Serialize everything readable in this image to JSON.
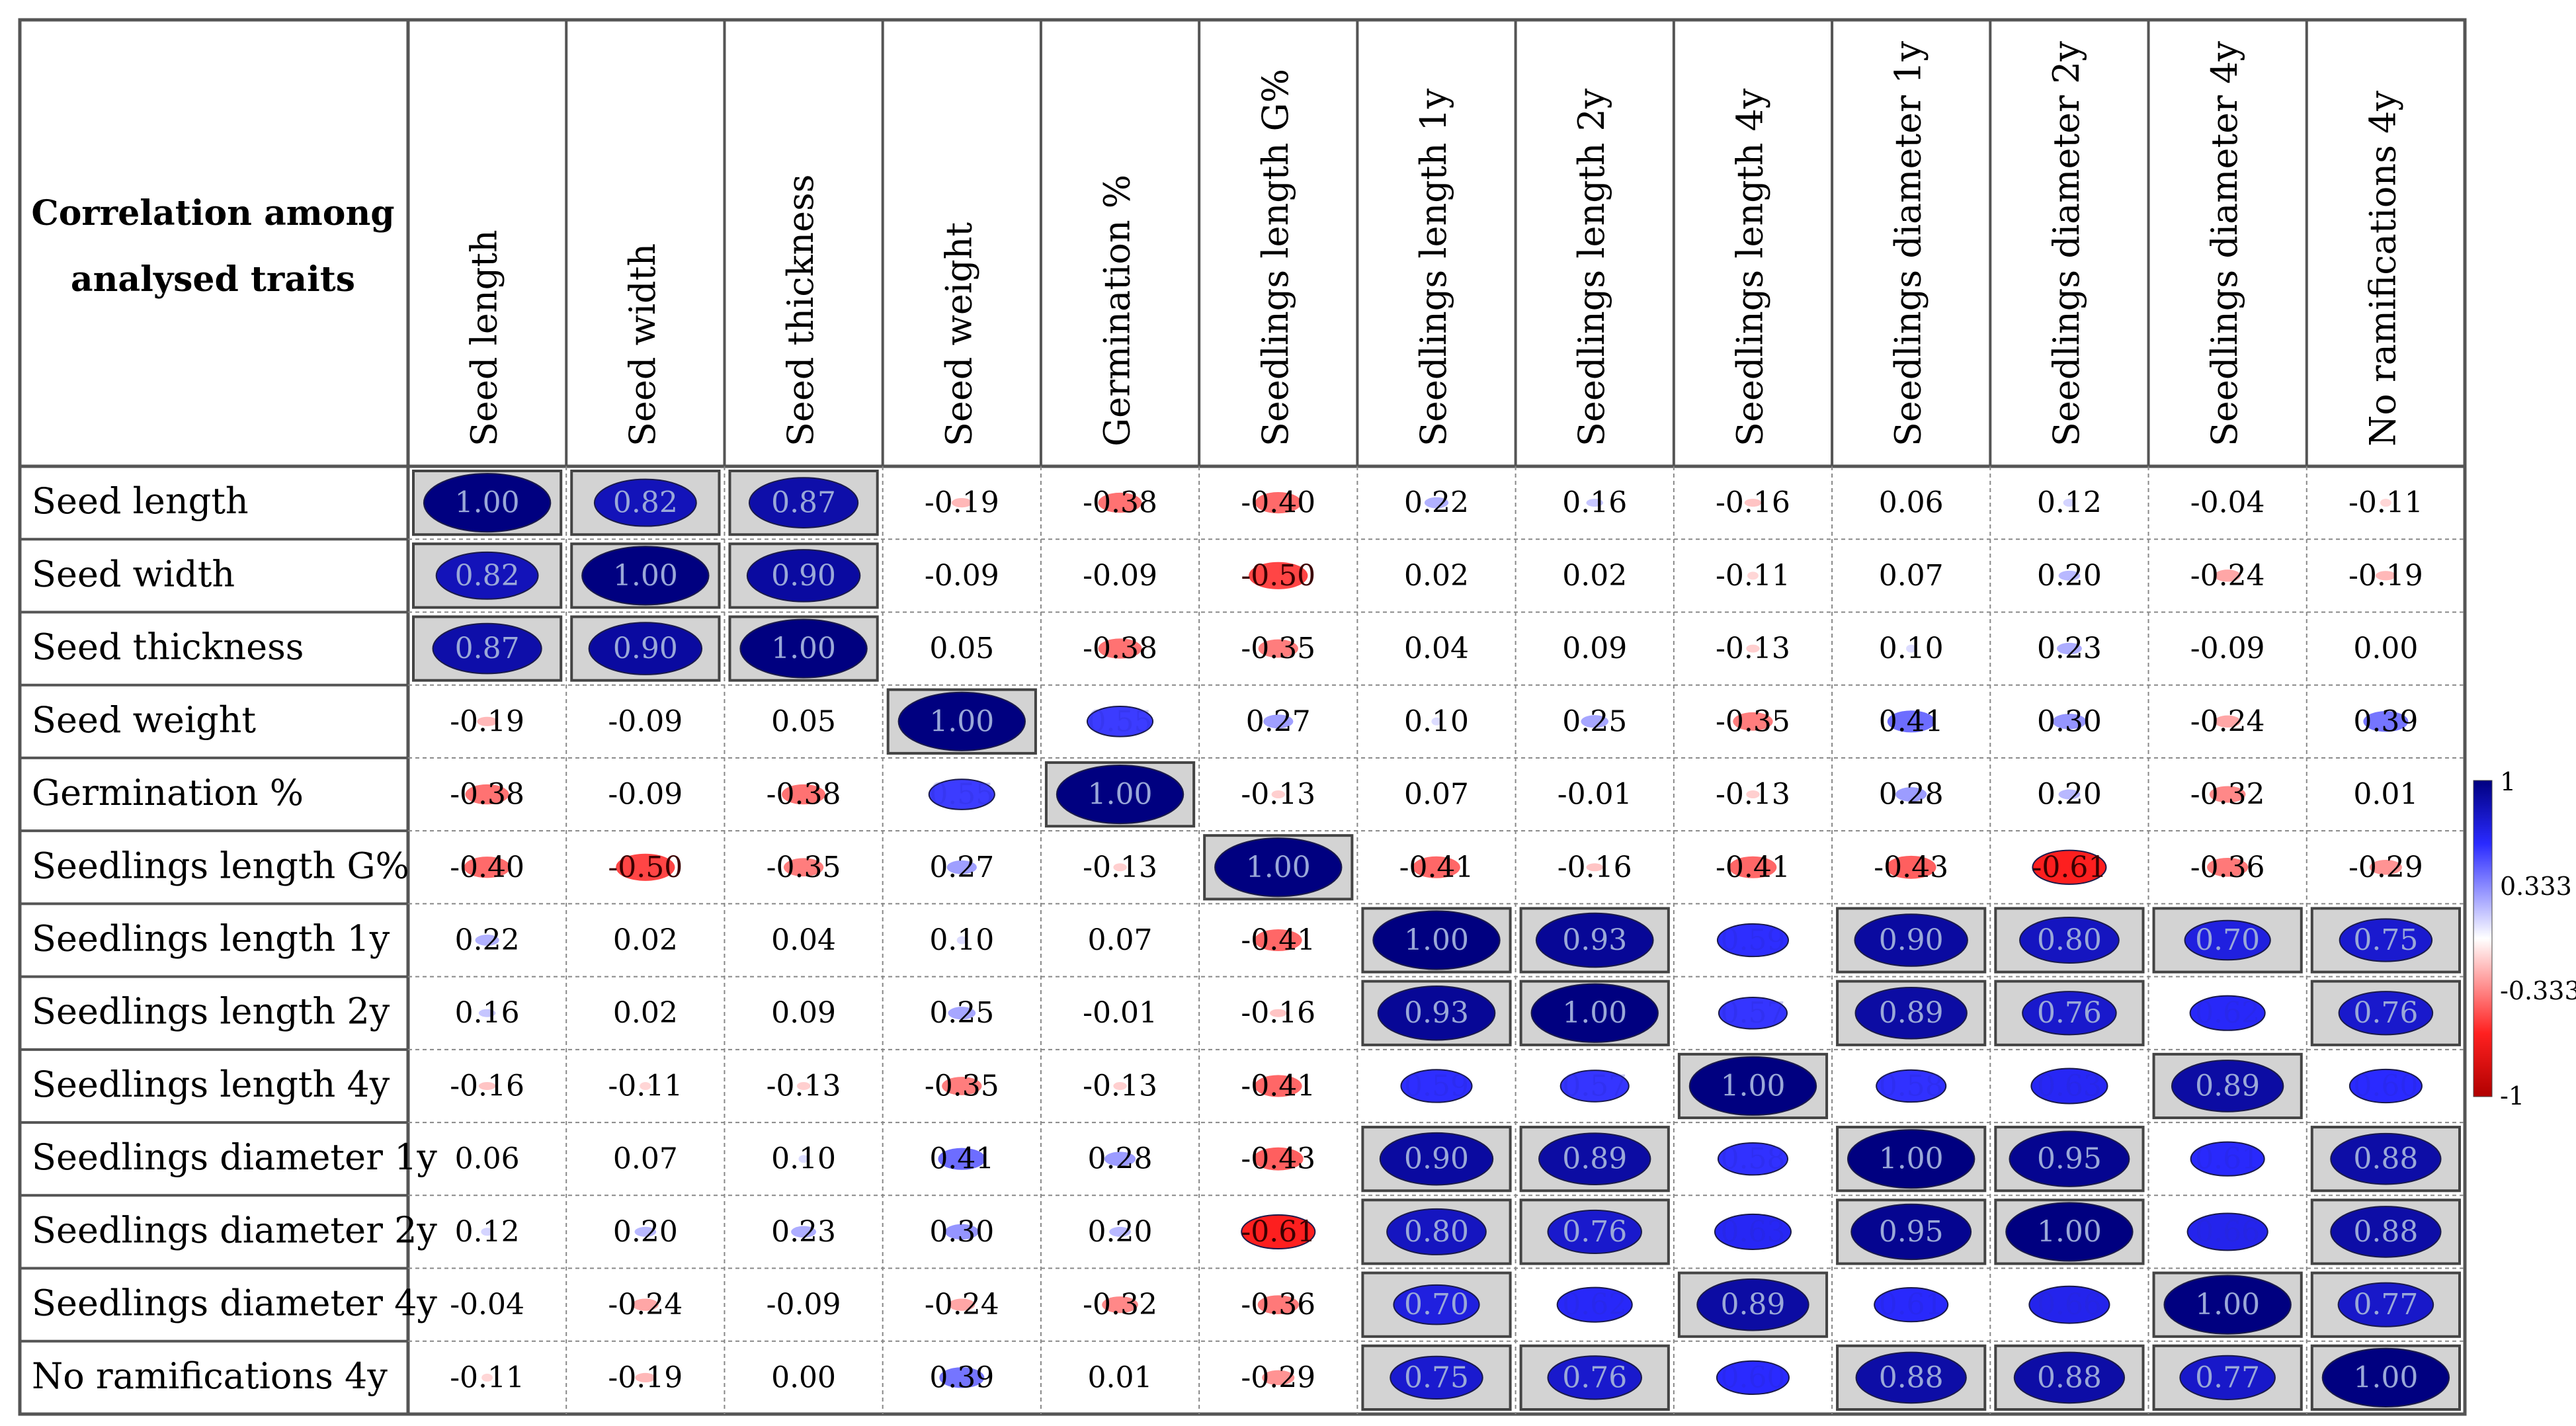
{
  "chart_data": {
    "type": "heatmap",
    "title": "Correlation among analysed traits",
    "title_lines": [
      "Correlation among",
      "analysed traits"
    ],
    "traits": [
      "Seed length",
      "Seed width",
      "Seed thickness",
      "Seed weight",
      "Germination %",
      "Seedlings length G%",
      "Seedlings length 1y",
      "Seedlings length 2y",
      "Seedlings length 4y",
      "Seedlings diameter 1y",
      "Seedlings diameter 2y",
      "Seedlings diameter 4y",
      "No ramifications 4y"
    ],
    "matrix": [
      [
        1.0,
        0.82,
        0.87,
        -0.19,
        -0.38,
        -0.4,
        0.22,
        0.16,
        -0.16,
        0.06,
        0.12,
        -0.04,
        -0.11
      ],
      [
        0.82,
        1.0,
        0.9,
        -0.09,
        -0.09,
        -0.5,
        0.02,
        0.02,
        -0.11,
        0.07,
        0.2,
        -0.24,
        -0.19
      ],
      [
        0.87,
        0.9,
        1.0,
        0.05,
        -0.38,
        -0.35,
        0.04,
        0.09,
        -0.13,
        0.1,
        0.23,
        -0.09,
        0.0
      ],
      [
        -0.19,
        -0.09,
        0.05,
        1.0,
        0.55,
        0.27,
        0.1,
        0.25,
        -0.35,
        0.41,
        0.3,
        -0.24,
        0.39
      ],
      [
        -0.38,
        -0.09,
        -0.38,
        0.55,
        1.0,
        -0.13,
        0.07,
        -0.01,
        -0.13,
        0.28,
        0.2,
        -0.32,
        0.01
      ],
      [
        -0.4,
        -0.5,
        -0.35,
        0.27,
        -0.13,
        1.0,
        -0.41,
        -0.16,
        -0.41,
        -0.43,
        -0.61,
        -0.36,
        -0.29
      ],
      [
        0.22,
        0.02,
        0.04,
        0.1,
        0.07,
        -0.41,
        1.0,
        0.93,
        0.59,
        0.9,
        0.8,
        0.7,
        0.75
      ],
      [
        0.16,
        0.02,
        0.09,
        0.25,
        -0.01,
        -0.16,
        0.93,
        1.0,
        0.57,
        0.89,
        0.76,
        0.62,
        0.76
      ],
      [
        -0.16,
        -0.11,
        -0.13,
        -0.35,
        -0.13,
        -0.41,
        0.59,
        0.57,
        1.0,
        0.58,
        0.63,
        0.89,
        0.6
      ],
      [
        0.06,
        0.07,
        0.1,
        0.41,
        0.28,
        -0.43,
        0.9,
        0.89,
        0.58,
        1.0,
        0.95,
        0.61,
        0.88
      ],
      [
        0.12,
        0.2,
        0.23,
        0.3,
        0.2,
        -0.61,
        0.8,
        0.76,
        0.63,
        0.95,
        1.0,
        0.66,
        0.88
      ],
      [
        -0.04,
        -0.24,
        -0.09,
        -0.24,
        -0.32,
        -0.36,
        0.7,
        0.62,
        0.89,
        0.61,
        0.66,
        1.0,
        0.77
      ],
      [
        -0.11,
        -0.19,
        0.0,
        0.39,
        0.01,
        -0.29,
        0.75,
        0.76,
        0.6,
        0.88,
        0.88,
        0.77,
        1.0
      ]
    ],
    "significance_threshold": 0.7,
    "color_scale": {
      "min": -1,
      "max": 1,
      "tick_labels": [
        "1",
        "0.333",
        "-0.333",
        "-1"
      ],
      "stops": [
        {
          "value": -1,
          "color": "#b00000"
        },
        {
          "value": -0.6,
          "color": "#ff2020"
        },
        {
          "value": 0,
          "color": "#ffffff"
        },
        {
          "value": 0.6,
          "color": "#2a2aff"
        },
        {
          "value": 1,
          "color": "#000080"
        }
      ]
    },
    "legend_position": "right"
  }
}
